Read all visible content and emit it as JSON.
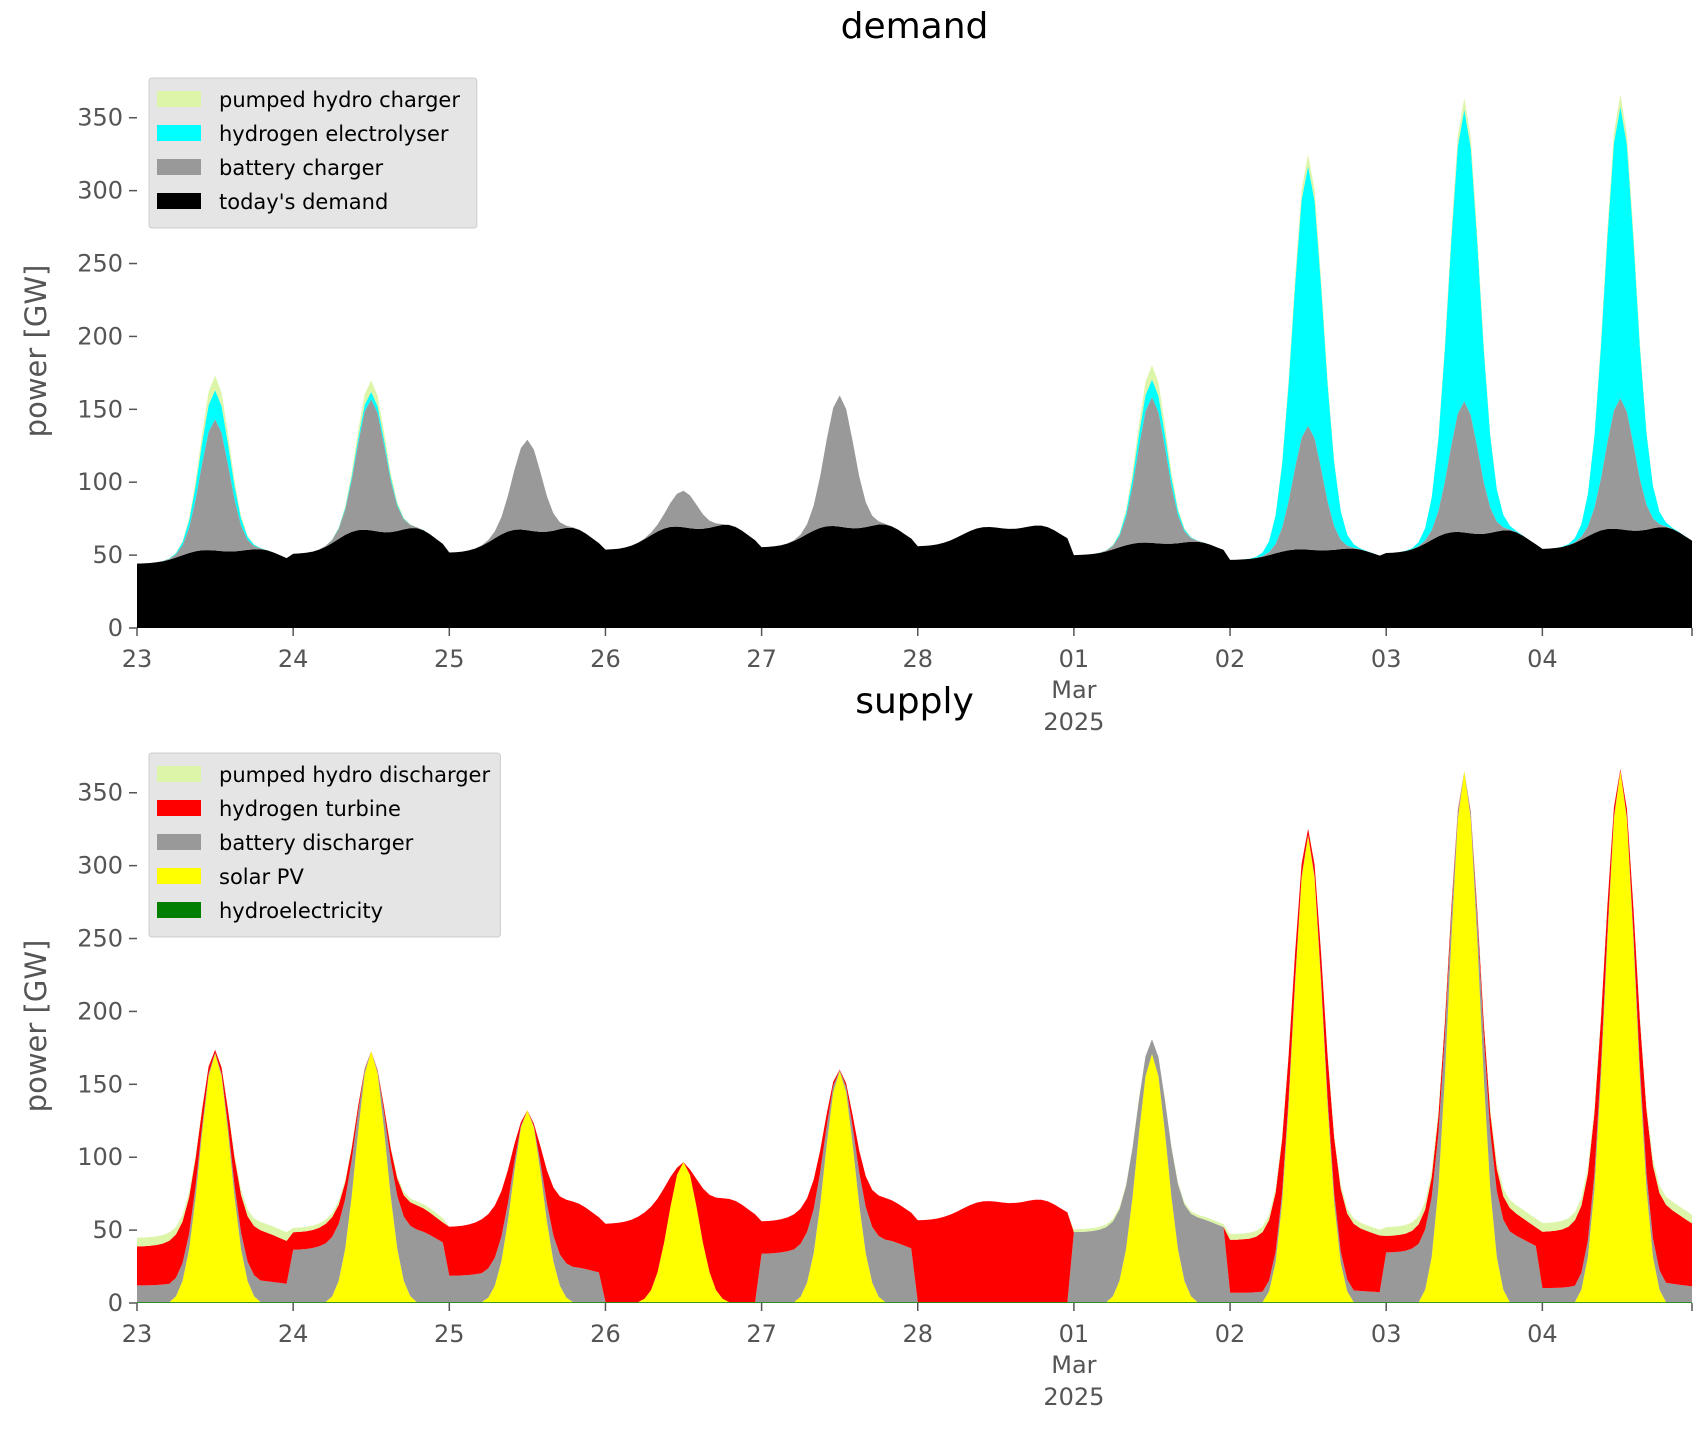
{
  "chart_data": [
    {
      "type": "area",
      "title": "demand",
      "xlabel": "",
      "ylabel": "power [GW]",
      "ylim": [
        0,
        380
      ],
      "yticks": [
        0,
        50,
        100,
        150,
        200,
        250,
        300,
        350
      ],
      "x_range": [
        "2025-02-23 00:00",
        "2025-03-04 23:00"
      ],
      "x_ticks": [
        {
          "date": "2025-02-23",
          "label": "23",
          "sublabel": ""
        },
        {
          "date": "2025-02-24",
          "label": "24",
          "sublabel": ""
        },
        {
          "date": "2025-02-25",
          "label": "25",
          "sublabel": ""
        },
        {
          "date": "2025-02-26",
          "label": "26",
          "sublabel": ""
        },
        {
          "date": "2025-02-27",
          "label": "27",
          "sublabel": ""
        },
        {
          "date": "2025-02-28",
          "label": "28",
          "sublabel": ""
        },
        {
          "date": "2025-03-01",
          "label": "01",
          "sublabel": "Mar\n2025"
        },
        {
          "date": "2025-03-02",
          "label": "02",
          "sublabel": ""
        },
        {
          "date": "2025-03-03",
          "label": "03",
          "sublabel": ""
        },
        {
          "date": "2025-03-04",
          "label": "04",
          "sublabel": ""
        }
      ],
      "grid": false,
      "stacked": true,
      "legend_position": "top-left",
      "legend_order": [
        "pumped hydro charger",
        "hydrogen electrolyser",
        "battery charger",
        "today's demand"
      ],
      "series_order": [
        "today's demand",
        "battery charger",
        "hydrogen electrolyser",
        "pumped hydro charger"
      ],
      "series": [
        {
          "name": "today's demand",
          "color": "#000000"
        },
        {
          "name": "battery charger",
          "color": "#999999"
        },
        {
          "name": "hydrogen electrolyser",
          "color": "#00ffff"
        },
        {
          "name": "pumped hydro charger",
          "color": "#dcf5a9"
        }
      ],
      "daily": {
        "base_min": [
          42,
          47,
          48,
          50,
          52,
          53,
          48,
          45,
          48,
          51
        ],
        "base_max": [
          56,
          72,
          72,
          74,
          74,
          73,
          61,
          56,
          70,
          72
        ],
        "battery_peak": [
          90,
          90,
          62,
          25,
          90,
          0,
          100,
          85,
          90,
          90
        ],
        "hydrogen_peak": [
          20,
          5,
          0,
          0,
          0,
          0,
          12,
          178,
          200,
          200
        ],
        "pumped_peak": [
          10,
          8,
          0,
          0,
          0,
          0,
          10,
          8,
          8,
          8
        ]
      }
    },
    {
      "type": "area",
      "title": "supply",
      "xlabel": "",
      "ylabel": "power [GW]",
      "ylim": [
        0,
        380
      ],
      "yticks": [
        0,
        50,
        100,
        150,
        200,
        250,
        300,
        350
      ],
      "x_range": [
        "2025-02-23 00:00",
        "2025-03-04 23:00"
      ],
      "x_ticks": [
        {
          "date": "2025-02-23",
          "label": "23",
          "sublabel": ""
        },
        {
          "date": "2025-02-24",
          "label": "24",
          "sublabel": ""
        },
        {
          "date": "2025-02-25",
          "label": "25",
          "sublabel": ""
        },
        {
          "date": "2025-02-26",
          "label": "26",
          "sublabel": ""
        },
        {
          "date": "2025-02-27",
          "label": "27",
          "sublabel": ""
        },
        {
          "date": "2025-02-28",
          "label": "28",
          "sublabel": ""
        },
        {
          "date": "2025-03-01",
          "label": "01",
          "sublabel": "Mar\n2025"
        },
        {
          "date": "2025-03-02",
          "label": "02",
          "sublabel": ""
        },
        {
          "date": "2025-03-03",
          "label": "03",
          "sublabel": ""
        },
        {
          "date": "2025-03-04",
          "label": "04",
          "sublabel": ""
        }
      ],
      "grid": false,
      "stacked": true,
      "legend_position": "top-left",
      "legend_order": [
        "pumped hydro discharger",
        "hydrogen turbine",
        "battery discharger",
        "solar PV",
        "hydroelectricity"
      ],
      "series_order": [
        "hydroelectricity",
        "solar PV",
        "battery discharger",
        "hydrogen turbine",
        "pumped hydro discharger"
      ],
      "series": [
        {
          "name": "hydroelectricity",
          "color": "#008000"
        },
        {
          "name": "solar PV",
          "color": "#ffff00"
        },
        {
          "name": "battery discharger",
          "color": "#999999"
        },
        {
          "name": "hydrogen turbine",
          "color": "#ff0000"
        },
        {
          "name": "pumped hydro discharger",
          "color": "#dcf5a9"
        }
      ],
      "daily": {
        "solar_peak": [
          172,
          174,
          133,
          97,
          160,
          0,
          172,
          323,
          368,
          368
        ],
        "battery_fraction": [
          0.3,
          0.75,
          0.35,
          0.0,
          0.6,
          0.0,
          1.0,
          0.15,
          0.75,
          0.2
        ],
        "pumped_night": [
          6,
          3,
          0,
          0,
          0,
          0,
          2,
          4,
          6,
          6
        ]
      }
    }
  ]
}
